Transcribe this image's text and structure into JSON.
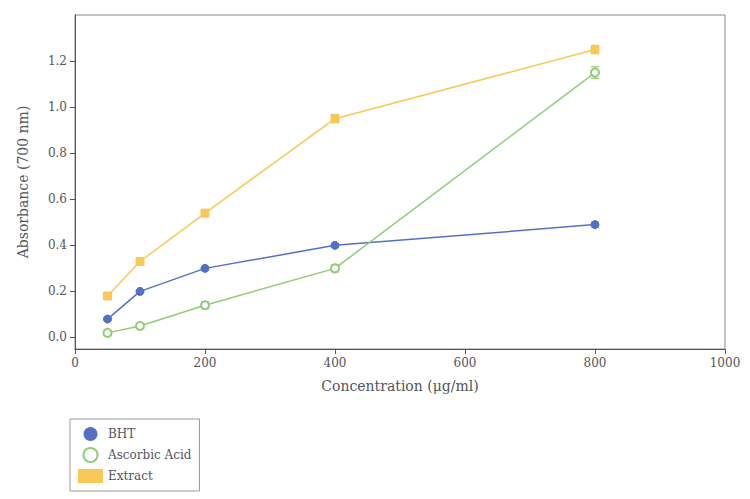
{
  "chart_data": {
    "type": "line",
    "xlabel": "Concentration (μg/ml)",
    "ylabel": "Absorbance (700 nm)",
    "x": [
      50,
      100,
      200,
      400,
      800
    ],
    "series": [
      {
        "name": "BHT",
        "marker": "circle",
        "values": [
          0.08,
          0.2,
          0.3,
          0.4,
          0.49
        ],
        "errors": [
          0.005,
          0.005,
          0.008,
          0.008,
          0.01
        ]
      },
      {
        "name": "Ascorbic Acid",
        "marker": "open circle",
        "values": [
          0.02,
          0.05,
          0.14,
          0.3,
          1.15
        ],
        "errors": [
          0.005,
          0.005,
          0.015,
          0.015,
          0.025
        ]
      },
      {
        "name": "Extract",
        "marker": "square",
        "values": [
          0.18,
          0.33,
          0.54,
          0.95,
          1.25
        ],
        "errors": [
          0.008,
          0.008,
          0.015,
          0.018,
          0.018
        ]
      }
    ],
    "xlim": [
      0,
      1000
    ],
    "xticks": [
      0,
      200,
      400,
      600,
      800,
      1000
    ],
    "ylim": [
      -0.05,
      1.4
    ],
    "yticks": [
      {
        "value": 0.0,
        "label": "0.0"
      },
      0.2,
      0.4,
      0.6,
      0.8,
      {
        "value": 1.0,
        "label": "1.0"
      },
      1.2
    ],
    "grid": false,
    "legend": "lower left"
  }
}
